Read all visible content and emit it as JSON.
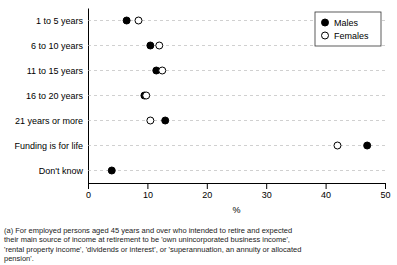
{
  "chart_data": {
    "type": "dot",
    "orientation": "horizontal",
    "categories": [
      "1 to 5 years",
      "6 to 10 years",
      "11 to 15 years",
      "16 to 20 years",
      "21 years or more",
      "Funding is for life",
      "Don't know"
    ],
    "series": [
      {
        "name": "Males",
        "color": "#000000",
        "marker": "filled-circle",
        "values": [
          6.5,
          10.5,
          11.5,
          9.5,
          13.0,
          47.0,
          4.0
        ]
      },
      {
        "name": "Females",
        "color": "#000000",
        "marker": "open-circle",
        "values": [
          8.5,
          12.0,
          12.5,
          9.8,
          10.5,
          42.0,
          null
        ]
      }
    ],
    "xlim": [
      0,
      50
    ],
    "xticks": [
      0,
      10,
      20,
      30,
      40,
      50
    ],
    "xlabel": "%",
    "grid": false,
    "legend": "upper right",
    "annotations": [
      "(a) For employed persons aged 45 years and over who intended to retire and expected\ntheir main source of income at retirement to be 'own unincorporated business income',\n'rental property income', 'dividends or interest', or 'superannuation, an annuity or allocated\npension'."
    ]
  }
}
